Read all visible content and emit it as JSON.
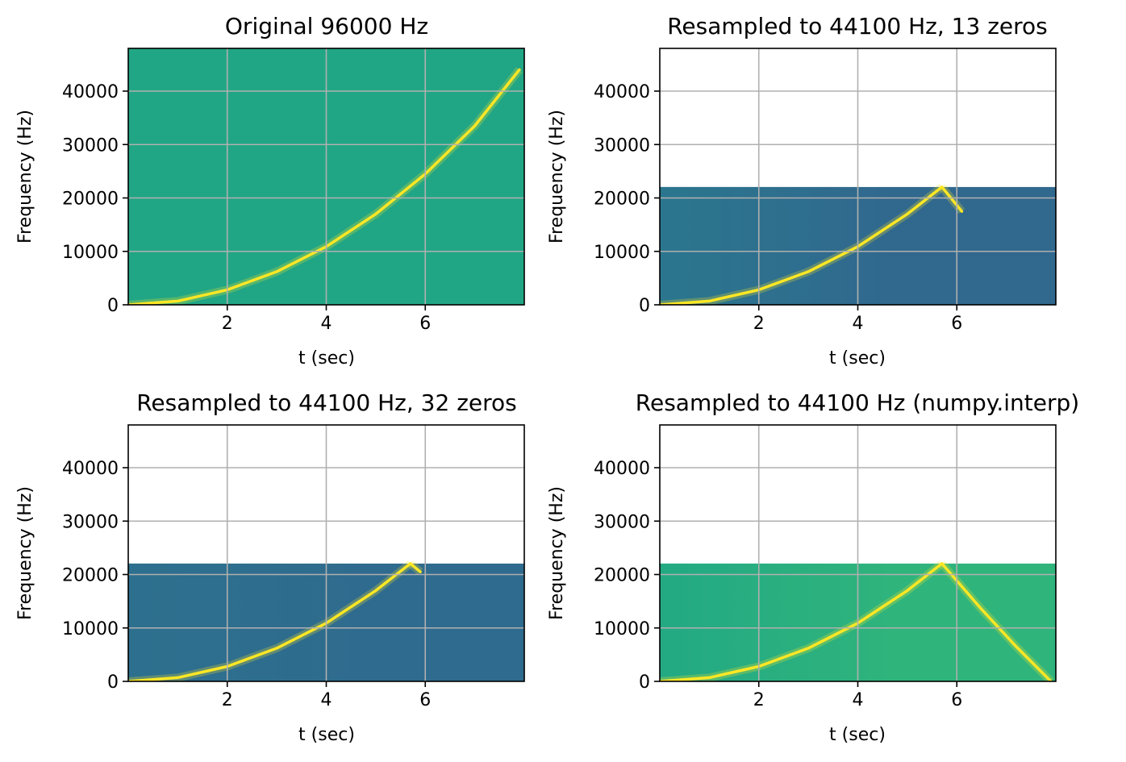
{
  "chart_data": [
    {
      "type": "heatmap",
      "title": "Original 96000 Hz",
      "xlabel": "t (sec)",
      "ylabel": "Frequency (Hz)",
      "xlim": [
        0,
        8
      ],
      "ylim": [
        0,
        48000
      ],
      "xticks": [
        2,
        4,
        6
      ],
      "yticks": [
        0,
        10000,
        20000,
        30000,
        40000
      ],
      "grid": true,
      "sample_rate_hz": 96000,
      "nyquist_hz": 48000,
      "chirp": {
        "t": [
          0,
          1,
          2,
          3,
          4,
          5,
          6,
          7,
          7.9
        ],
        "f": [
          0,
          700,
          2800,
          6200,
          10900,
          17000,
          24500,
          33500,
          44000
        ]
      },
      "aliased_chirp": null,
      "background": "#21a685",
      "low_region": "#21a685",
      "ridge_color": "#fde725"
    },
    {
      "type": "heatmap",
      "title": "Resampled to 44100 Hz, 13 zeros",
      "xlabel": "t (sec)",
      "ylabel": "Frequency (Hz)",
      "xlim": [
        0,
        8
      ],
      "ylim": [
        0,
        48000
      ],
      "xticks": [
        2,
        4,
        6
      ],
      "yticks": [
        0,
        10000,
        20000,
        30000,
        40000
      ],
      "grid": true,
      "sample_rate_hz": 44100,
      "nyquist_hz": 22050,
      "chirp": {
        "t": [
          0,
          1,
          2,
          3,
          4,
          5,
          5.7
        ],
        "f": [
          0,
          700,
          2800,
          6200,
          10900,
          17000,
          22050
        ]
      },
      "aliased_chirp": {
        "t": [
          5.7,
          6.1
        ],
        "f": [
          22050,
          17500
        ]
      },
      "background": "#31688e",
      "low_region": "#2a788e",
      "ridge_color": "#fde725"
    },
    {
      "type": "heatmap",
      "title": "Resampled to 44100 Hz, 32 zeros",
      "xlabel": "t (sec)",
      "ylabel": "Frequency (Hz)",
      "xlim": [
        0,
        8
      ],
      "ylim": [
        0,
        48000
      ],
      "xticks": [
        2,
        4,
        6
      ],
      "yticks": [
        0,
        10000,
        20000,
        30000,
        40000
      ],
      "grid": true,
      "sample_rate_hz": 44100,
      "nyquist_hz": 22050,
      "chirp": {
        "t": [
          0,
          1,
          2,
          3,
          4,
          5,
          5.7
        ],
        "f": [
          0,
          700,
          2800,
          6200,
          10900,
          17000,
          22050
        ]
      },
      "aliased_chirp": {
        "t": [
          5.7,
          5.9
        ],
        "f": [
          22050,
          20500
        ]
      },
      "background": "#2f6b8e",
      "low_region": "#2d708e",
      "ridge_color": "#fde725"
    },
    {
      "type": "heatmap",
      "title": "Resampled to 44100 Hz (numpy.interp)",
      "xlabel": "t (sec)",
      "ylabel": "Frequency (Hz)",
      "xlim": [
        0,
        8
      ],
      "ylim": [
        0,
        48000
      ],
      "xticks": [
        2,
        4,
        6
      ],
      "yticks": [
        0,
        10000,
        20000,
        30000,
        40000
      ],
      "grid": true,
      "sample_rate_hz": 44100,
      "nyquist_hz": 22050,
      "chirp": {
        "t": [
          0,
          1,
          2,
          3,
          4,
          5,
          5.7
        ],
        "f": [
          0,
          700,
          2800,
          6200,
          10900,
          17000,
          22050
        ]
      },
      "aliased_chirp": {
        "t": [
          5.7,
          6.5,
          7.2,
          7.9
        ],
        "f": [
          22050,
          13500,
          6500,
          0
        ]
      },
      "background": "#2fb47c",
      "low_region": "#22a884",
      "ridge_color": "#fde725"
    }
  ]
}
